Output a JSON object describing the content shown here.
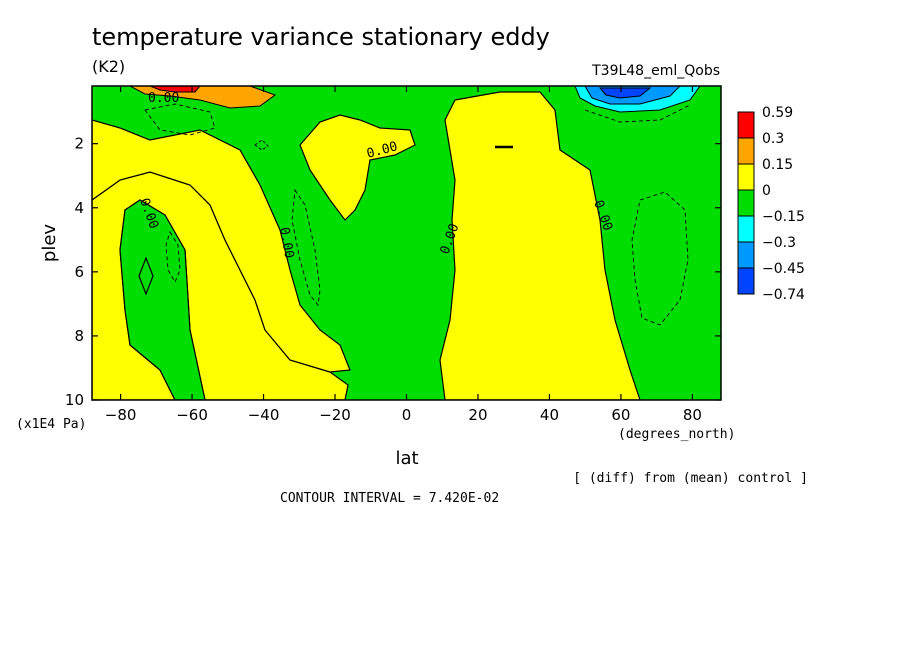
{
  "title": "temperature variance stationary eddy",
  "units": "(K2)",
  "run_label": "T39L48_eml_Qobs",
  "chart_data": {
    "type": "contour",
    "xlabel": "lat",
    "ylabel": "plev",
    "x_units": "(degrees_north)",
    "y_units": "(x1E4 Pa)",
    "xlim": [
      -88,
      88
    ],
    "ylim": [
      10,
      0.2
    ],
    "x_ticks": [
      -80,
      -60,
      -40,
      -20,
      0,
      20,
      40,
      60,
      80
    ],
    "y_ticks": [
      2,
      4,
      6,
      8,
      10
    ],
    "x_tick_labels": [
      "−80",
      "−60",
      "−40",
      "−20",
      "0",
      "20",
      "40",
      "60",
      "80"
    ],
    "y_tick_labels": [
      "2",
      "4",
      "6",
      "8",
      "10"
    ],
    "colorbar": {
      "labels": [
        "0.59",
        "0.3",
        "0.15",
        "0",
        "−0.15",
        "−0.3",
        "−0.45",
        "−0.74"
      ],
      "colors": [
        "#ff0000",
        "#ffa500",
        "#ffff00",
        "#00dd00",
        "#00ffff",
        "#0099ff",
        "#0044ff"
      ]
    },
    "contour_labels": [
      "0.00",
      "0.00",
      "0.00",
      "0.00",
      "0.00",
      "0.00"
    ],
    "note": "[ (diff) from (mean) control ]",
    "contour_interval": "CONTOUR INTERVAL = 7.420E-02"
  }
}
